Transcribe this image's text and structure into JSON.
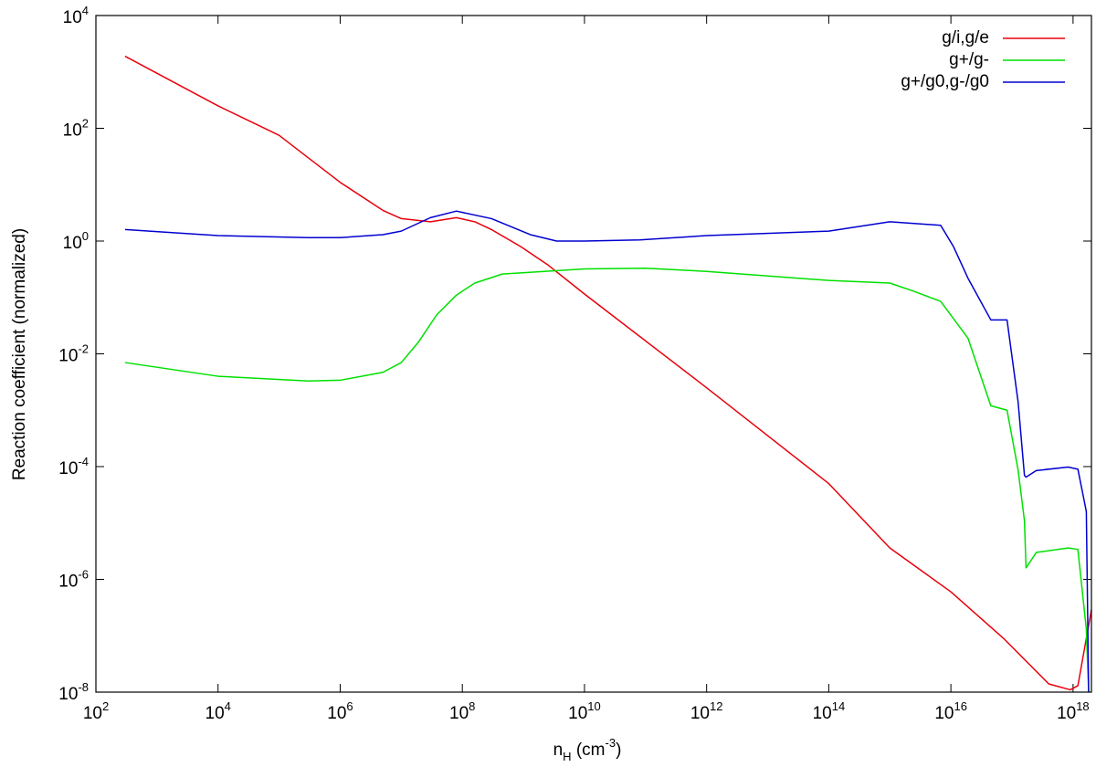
{
  "chart_data": {
    "type": "line",
    "x_label": "n_{H} (cm^{-3})",
    "y_label": "Reaction coefficient (normalized)",
    "log_x": true,
    "log_y": true,
    "legend": "top-right",
    "xlim": [
      100,
      2e+18
    ],
    "ylim": [
      1e-08,
      10000
    ],
    "xticks": [
      {
        "value": 100,
        "label": "10^{2}"
      },
      {
        "value": 10000,
        "label": "10^{4}"
      },
      {
        "value": 1000000,
        "label": "10^{6}"
      },
      {
        "value": 100000000,
        "label": "10^{8}"
      },
      {
        "value": 10000000000.0,
        "label": "10^{10}"
      },
      {
        "value": 1000000000000.0,
        "label": "10^{12}"
      },
      {
        "value": 100000000000000.0,
        "label": "10^{14}"
      },
      {
        "value": 1e+16,
        "label": "10^{16}"
      },
      {
        "value": 1e+18,
        "label": "10^{18}"
      }
    ],
    "yticks": [
      {
        "value": 1e-08,
        "label": "10^{-8}"
      },
      {
        "value": 1e-06,
        "label": "10^{-6}"
      },
      {
        "value": 0.0001,
        "label": "10^{-4}"
      },
      {
        "value": 0.01,
        "label": "10^{-2}"
      },
      {
        "value": 1,
        "label": "10^{0}"
      },
      {
        "value": 100,
        "label": "10^{2}"
      },
      {
        "value": 10000,
        "label": "10^{4}"
      }
    ],
    "series": [
      {
        "name": "g/i,g/e",
        "color": "#e8000b",
        "x": [
          300,
          10000,
          100000,
          300000,
          1000000,
          5000000,
          10000000,
          30000000,
          80000000,
          160000000,
          300000000,
          900000000,
          2500000000,
          10000000000.0,
          1000000000000.0,
          100000000000000.0,
          1000000000000000.0,
          1e+16,
          7.5e+16,
          4e+17,
          9e+17,
          1.2e+18,
          2e+18
        ],
        "values": [
          1900,
          250,
          75,
          30,
          11,
          3.5,
          2.5,
          2.2,
          2.6,
          2.2,
          1.6,
          0.8,
          0.38,
          0.115,
          0.0025,
          5e-05,
          3.6e-06,
          6e-07,
          8.7e-08,
          1.4e-08,
          1.1e-08,
          1.3e-08,
          2.9e-07
        ]
      },
      {
        "name": "g+/g-",
        "color": "#00e000",
        "x": [
          300,
          10000,
          300000,
          1000000,
          5000000,
          10000000,
          19000000,
          38000000,
          80000000,
          160000000,
          450000000,
          10000000000.0,
          100000000000.0,
          1000000000000.0,
          100000000000000.0,
          1000000000000000.0,
          2400000000000000.0,
          6800000000000000.0,
          1.9e+16,
          4.5e+16,
          8.3e+16,
          1.26e+17,
          1.6e+17,
          1.7e+17,
          2.5e+17,
          8.3e+17,
          1.2e+18,
          1.65e+18,
          1.8e+18
        ],
        "values": [
          0.007,
          0.004,
          0.0033,
          0.0034,
          0.0047,
          0.007,
          0.016,
          0.049,
          0.11,
          0.18,
          0.26,
          0.32,
          0.33,
          0.29,
          0.2,
          0.18,
          0.13,
          0.085,
          0.019,
          0.0012,
          0.001,
          8.7e-05,
          1.1e-05,
          1.6e-06,
          3e-06,
          3.6e-06,
          3.4e-06,
          1.3e-07,
          1e-08
        ]
      },
      {
        "name": "g+/g0,g-/g0",
        "color": "#0000d0",
        "x": [
          300,
          10000,
          300000,
          1000000,
          5000000,
          10000000,
          30000000,
          80000000,
          300000000,
          1300000000,
          3500000000,
          10000000000.0,
          80000000000.0,
          1000000000000.0,
          100000000000000.0,
          1000000000000000.0,
          6800000000000000.0,
          1.1e+16,
          1.9e+16,
          4.5e+16,
          8.3e+16,
          1.26e+17,
          1.6e+17,
          1.7e+17,
          2.5e+17,
          8.3e+17,
          1.2e+18,
          1.65e+18,
          1.8e+18
        ],
        "values": [
          1.6,
          1.25,
          1.15,
          1.15,
          1.3,
          1.5,
          2.6,
          3.4,
          2.5,
          1.3,
          1.0,
          1.0,
          1.05,
          1.25,
          1.5,
          2.2,
          1.9,
          0.8,
          0.22,
          0.04,
          0.04,
          0.0014,
          7e-05,
          6.5e-05,
          8.5e-05,
          9.8e-05,
          9e-05,
          1.6e-05,
          1e-08
        ]
      }
    ]
  }
}
